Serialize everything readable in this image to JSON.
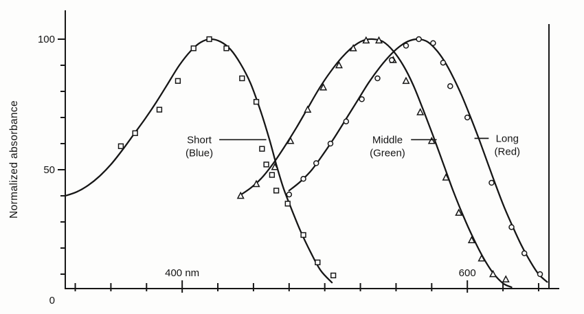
{
  "chart_data": {
    "type": "line",
    "title": "",
    "xlabel": "",
    "ylabel": "Normalized absorbance",
    "x_unit": "nm",
    "xlim": [
      318,
      664
    ],
    "ylim": [
      0,
      100
    ],
    "grid": false,
    "legend_position": "none",
    "x_ticks": {
      "start": 325,
      "step": 25,
      "end": 650,
      "labeled": [
        {
          "value": 400,
          "label": "400 nm"
        },
        {
          "value": 600,
          "label": "600"
        }
      ]
    },
    "y_ticks": {
      "start": 10,
      "step": 10,
      "end": 100,
      "major": [
        50,
        100
      ],
      "labels": [
        {
          "value": 0,
          "label": "0"
        },
        {
          "value": 50,
          "label": "50"
        },
        {
          "value": 100,
          "label": "100"
        }
      ]
    },
    "ink_color": "#161616",
    "series": [
      {
        "name": "Short (Blue)",
        "marker": "square",
        "peak_nm": 420,
        "curve": [
          [
            318,
            40
          ],
          [
            326,
            41.5
          ],
          [
            334,
            44
          ],
          [
            342,
            47.5
          ],
          [
            350,
            52
          ],
          [
            358,
            57.5
          ],
          [
            366,
            63.5
          ],
          [
            374,
            69.5
          ],
          [
            382,
            76
          ],
          [
            390,
            83
          ],
          [
            398,
            90
          ],
          [
            406,
            95.5
          ],
          [
            413,
            98.8
          ],
          [
            420,
            100
          ],
          [
            427,
            99
          ],
          [
            434,
            96
          ],
          [
            441,
            90.5
          ],
          [
            448,
            83
          ],
          [
            455,
            72.5
          ],
          [
            461,
            62
          ],
          [
            466,
            52
          ],
          [
            471,
            43
          ],
          [
            477,
            34.5
          ],
          [
            483,
            26.5
          ],
          [
            490,
            18.5
          ],
          [
            497,
            11.5
          ],
          [
            505,
            6.8
          ]
        ],
        "points": [
          [
            357,
            59
          ],
          [
            367,
            64
          ],
          [
            384,
            73
          ],
          [
            397,
            84
          ],
          [
            408,
            96.5
          ],
          [
            419,
            100
          ],
          [
            431,
            96.5
          ],
          [
            442,
            85
          ],
          [
            452,
            76
          ],
          [
            456,
            58
          ],
          [
            459,
            52
          ],
          [
            463,
            48
          ],
          [
            466,
            42
          ],
          [
            474,
            37
          ],
          [
            485,
            25
          ],
          [
            495,
            14.5
          ],
          [
            506,
            9.5
          ]
        ]
      },
      {
        "name": "Middle (Green)",
        "marker": "triangle",
        "peak_nm": 534,
        "curve": [
          [
            440,
            40
          ],
          [
            448,
            43
          ],
          [
            456,
            47
          ],
          [
            464,
            52.5
          ],
          [
            472,
            59
          ],
          [
            480,
            66
          ],
          [
            488,
            73.5
          ],
          [
            496,
            81
          ],
          [
            504,
            87.5
          ],
          [
            512,
            93
          ],
          [
            520,
            97.2
          ],
          [
            527,
            99.5
          ],
          [
            534,
            100
          ],
          [
            541,
            99
          ],
          [
            548,
            95.5
          ],
          [
            555,
            90
          ],
          [
            562,
            82.5
          ],
          [
            569,
            73
          ],
          [
            576,
            63
          ],
          [
            583,
            52.5
          ],
          [
            590,
            42
          ],
          [
            597,
            32.5
          ],
          [
            604,
            24
          ],
          [
            611,
            16.5
          ],
          [
            618,
            10.5
          ],
          [
            625,
            6.5
          ],
          [
            631,
            5
          ]
        ],
        "points": [
          [
            441,
            40
          ],
          [
            452,
            44.5
          ],
          [
            465,
            51
          ],
          [
            476,
            61
          ],
          [
            488,
            73
          ],
          [
            499,
            81.5
          ],
          [
            510,
            90
          ],
          [
            520,
            96.5
          ],
          [
            529,
            99.5
          ],
          [
            538,
            99.5
          ],
          [
            548,
            92
          ],
          [
            557,
            84
          ],
          [
            567,
            72
          ],
          [
            575,
            61
          ],
          [
            585,
            47
          ],
          [
            594,
            33.5
          ],
          [
            603,
            23
          ],
          [
            610,
            16
          ],
          [
            618,
            10
          ],
          [
            627,
            8
          ]
        ]
      },
      {
        "name": "Long (Red)",
        "marker": "circle",
        "peak_nm": 566,
        "curve": [
          [
            475,
            42
          ],
          [
            483,
            45.5
          ],
          [
            491,
            50
          ],
          [
            499,
            56
          ],
          [
            507,
            62.5
          ],
          [
            515,
            69.5
          ],
          [
            523,
            76.5
          ],
          [
            531,
            83.5
          ],
          [
            539,
            89.5
          ],
          [
            547,
            94.5
          ],
          [
            554,
            97.8
          ],
          [
            560,
            99.5
          ],
          [
            566,
            100
          ],
          [
            572,
            99
          ],
          [
            578,
            96
          ],
          [
            584,
            91.5
          ],
          [
            590,
            85.5
          ],
          [
            596,
            78.5
          ],
          [
            602,
            70.5
          ],
          [
            608,
            62
          ],
          [
            614,
            53
          ],
          [
            620,
            44
          ],
          [
            626,
            35.5
          ],
          [
            632,
            28
          ],
          [
            638,
            21
          ],
          [
            644,
            15
          ],
          [
            650,
            10
          ],
          [
            656,
            7
          ]
        ],
        "points": [
          [
            475,
            40.5
          ],
          [
            485,
            46.5
          ],
          [
            494,
            52.5
          ],
          [
            504,
            60
          ],
          [
            515,
            68.5
          ],
          [
            526,
            77
          ],
          [
            537,
            85
          ],
          [
            547,
            92
          ],
          [
            557,
            97.5
          ],
          [
            566,
            100
          ],
          [
            576,
            98.5
          ],
          [
            583,
            91
          ],
          [
            588,
            82
          ],
          [
            600,
            70
          ],
          [
            617,
            45
          ],
          [
            631,
            28
          ],
          [
            640,
            18
          ],
          [
            651,
            10
          ]
        ]
      }
    ],
    "annotations": [
      {
        "line1": "Short",
        "line2": "(Blue)",
        "text_nm": 412,
        "text_value": 61.5,
        "pointer_nm": [
          426,
          459
        ],
        "pointer_value": 61.5
      },
      {
        "line1": "Middle",
        "line2": "(Green)",
        "text_nm": 544,
        "text_value": 61.5,
        "pointer_nm": [
          560.5,
          578.5
        ],
        "pointer_value": 61.5
      },
      {
        "line1": "Long",
        "line2": "(Red)",
        "text_nm": 628,
        "text_value": 62,
        "pointer_nm": [
          615,
          605
        ],
        "pointer_value": 62
      }
    ]
  }
}
